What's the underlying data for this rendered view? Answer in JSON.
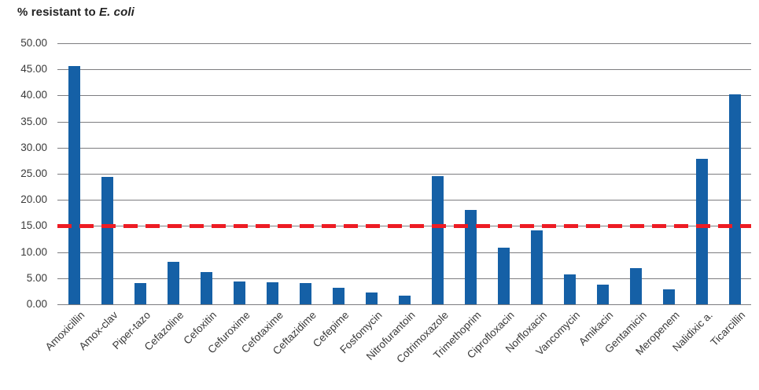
{
  "header": {
    "title_prefix": "% resistant to ",
    "title_italic": "E. coli"
  },
  "colors": {
    "bar": "#1560a6",
    "threshold_line": "#ed1c24",
    "gridline": "#7d7d80",
    "axis_text": "#3a3a3a",
    "title_text": "#232323",
    "background": "#ffffff"
  },
  "chart_data": {
    "type": "bar",
    "title": "% resistant to E. coli",
    "categories": [
      "Amoxicillin",
      "Amox-clav",
      "Piper-tazo",
      "Cefazoline",
      "Cefoxitin",
      "Cefuroxime",
      "Cefotaxime",
      "Ceftazidime",
      "Cefepime",
      "Fosfomycin",
      "Nitrofurantoin",
      "Cotrimoxazole",
      "Trimethoprim",
      "Ciprofloxacin",
      "Norfloxacin",
      "Vancomycin",
      "Amikacin",
      "Gentamicin",
      "Meropenem",
      "Nalidixic a.",
      "Ticarcillin"
    ],
    "values": [
      45.7,
      24.4,
      4.0,
      8.1,
      6.1,
      4.4,
      4.2,
      4.0,
      3.2,
      2.3,
      1.6,
      24.6,
      18.0,
      10.8,
      14.1,
      5.7,
      3.8,
      7.0,
      2.9,
      27.9,
      40.2
    ],
    "threshold": {
      "value": 15,
      "style": "dashed",
      "color": "#ed1c24"
    },
    "xlabel": "",
    "ylabel": "",
    "ylim": [
      0,
      50
    ],
    "ytick_step": 5,
    "ytick_labels": [
      "0.00",
      "5.00",
      "10.00",
      "15.00",
      "20.00",
      "25.00",
      "30.00",
      "35.00",
      "40.00",
      "45.00",
      "50.00"
    ],
    "grid": true,
    "legend": false,
    "x_label_rotation_deg": 45
  }
}
